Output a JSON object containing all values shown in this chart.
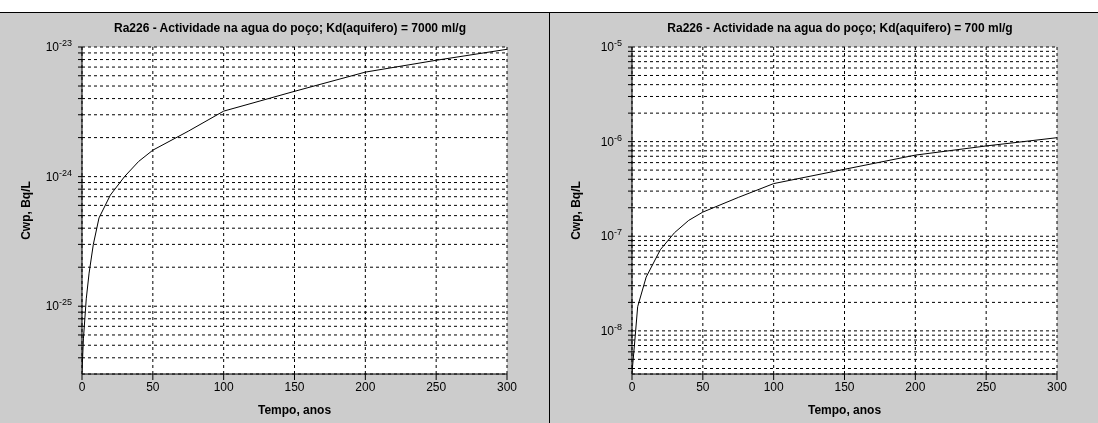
{
  "chart_data": [
    {
      "type": "line",
      "title": "Ra226 - Actividade na agua do poço; Kd(aquifero) = 7000 ml/g",
      "xlabel": "Tempo, anos",
      "ylabel": "Cwp, Bq/L",
      "log": "y",
      "grid": true,
      "marker": "none",
      "line_style": "solid",
      "x": [
        0,
        1,
        3,
        5,
        8,
        12,
        20,
        30,
        40,
        50,
        75,
        100,
        150,
        200,
        250,
        300
      ],
      "series": [
        {
          "color": "#000000",
          "values": [
            3.1e-26,
            5.6e-26,
            1.14e-25,
            1.8e-25,
            3e-25,
            4.8e-25,
            7.2e-25,
            1e-24,
            1.31e-24,
            1.6e-24,
            2.24e-24,
            3.2e-24,
            4.55e-24,
            6.4e-24,
            7.9e-24,
            9.6e-24
          ]
        }
      ],
      "xlim": [
        0,
        300
      ],
      "xticks": [
        0,
        50,
        100,
        150,
        200,
        250,
        300
      ],
      "ylim": [
        3e-26,
        1e-23
      ],
      "yticks": [
        {
          "value": 4e-26,
          "label": null
        },
        {
          "value": 5e-26,
          "label": null
        },
        {
          "value": 6e-26,
          "label": null
        },
        {
          "value": 7e-26,
          "label": null
        },
        {
          "value": 8e-26,
          "label": null
        },
        {
          "value": 9e-26,
          "label": null
        },
        {
          "value": 1e-25,
          "label": "10$^{-25}$"
        },
        {
          "value": 2e-25,
          "label": null
        },
        {
          "value": 3e-25,
          "label": null
        },
        {
          "value": 4e-25,
          "label": null
        },
        {
          "value": 5e-25,
          "label": null
        },
        {
          "value": 6e-25,
          "label": null
        },
        {
          "value": 7e-25,
          "label": null
        },
        {
          "value": 8e-25,
          "label": null
        },
        {
          "value": 9e-25,
          "label": null
        },
        {
          "value": 1e-24,
          "label": "10$^{-24}$"
        },
        {
          "value": 2e-24,
          "label": null
        },
        {
          "value": 3e-24,
          "label": null
        },
        {
          "value": 4e-24,
          "label": null
        },
        {
          "value": 5e-24,
          "label": null
        },
        {
          "value": 6e-24,
          "label": null
        },
        {
          "value": 7e-24,
          "label": null
        },
        {
          "value": 8e-24,
          "label": null
        },
        {
          "value": 9e-24,
          "label": null
        },
        {
          "value": 1e-23,
          "label": "10$^{-23}$"
        }
      ]
    },
    {
      "type": "line",
      "title": "Ra226 - Actividade na agua do poço; Kd(aquifero) = 700 ml/g",
      "xlabel": "Tempo, anos",
      "ylabel": "Cwp, Bq/L",
      "log": "y",
      "grid": true,
      "marker": "none",
      "line_style": "solid",
      "x": [
        0,
        2,
        4,
        10,
        20,
        30,
        40,
        50,
        75,
        100,
        150,
        200,
        250,
        300
      ],
      "series": [
        {
          "color": "#000000",
          "values": [
            3.6e-09,
            7.9e-09,
            1.8e-08,
            3.7e-08,
            7.2e-08,
            1.09e-07,
            1.47e-07,
            1.8e-07,
            2.57e-07,
            3.6e-07,
            5.1e-07,
            7.2e-07,
            9e-07,
            1.1e-06
          ]
        }
      ],
      "xlim": [
        0,
        300
      ],
      "xticks": [
        0,
        50,
        100,
        150,
        200,
        250,
        300
      ],
      "ylim": [
        3.5e-09,
        1e-05
      ],
      "yticks": [
        {
          "value": 4e-09,
          "label": null
        },
        {
          "value": 5e-09,
          "label": null
        },
        {
          "value": 6e-09,
          "label": null
        },
        {
          "value": 7e-09,
          "label": null
        },
        {
          "value": 8e-09,
          "label": null
        },
        {
          "value": 9e-09,
          "label": null
        },
        {
          "value": 1e-08,
          "label": "10$^{-8}$"
        },
        {
          "value": 2e-08,
          "label": null
        },
        {
          "value": 3e-08,
          "label": null
        },
        {
          "value": 4e-08,
          "label": null
        },
        {
          "value": 5e-08,
          "label": null
        },
        {
          "value": 6e-08,
          "label": null
        },
        {
          "value": 7e-08,
          "label": null
        },
        {
          "value": 8e-08,
          "label": null
        },
        {
          "value": 9e-08,
          "label": null
        },
        {
          "value": 1e-07,
          "label": "10$^{-7}$"
        },
        {
          "value": 2e-07,
          "label": null
        },
        {
          "value": 3e-07,
          "label": null
        },
        {
          "value": 4e-07,
          "label": null
        },
        {
          "value": 5e-07,
          "label": null
        },
        {
          "value": 6e-07,
          "label": null
        },
        {
          "value": 7e-07,
          "label": null
        },
        {
          "value": 8e-07,
          "label": null
        },
        {
          "value": 9e-07,
          "label": null
        },
        {
          "value": 1e-06,
          "label": "10$^{-6}$"
        },
        {
          "value": 2e-06,
          "label": null
        },
        {
          "value": 3e-06,
          "label": null
        },
        {
          "value": 4e-06,
          "label": null
        },
        {
          "value": 5e-06,
          "label": null
        },
        {
          "value": 6e-06,
          "label": null
        },
        {
          "value": 7e-06,
          "label": null
        },
        {
          "value": 8e-06,
          "label": null
        },
        {
          "value": 9e-06,
          "label": null
        },
        {
          "value": 1e-05,
          "label": "10$^{-5}$"
        }
      ]
    }
  ]
}
